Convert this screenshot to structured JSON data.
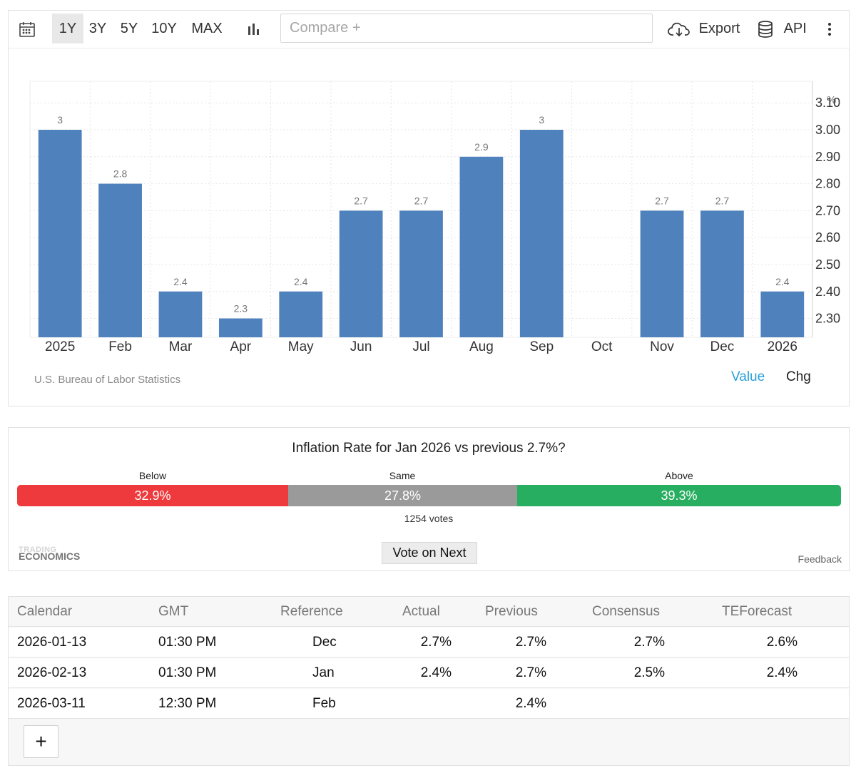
{
  "toolbar": {
    "ranges": [
      "1Y",
      "3Y",
      "5Y",
      "10Y",
      "MAX"
    ],
    "active_range": "1Y",
    "compare_placeholder": "Compare +",
    "export_label": "Export",
    "api_label": "API",
    "icons": {
      "calendar": "calendar-icon",
      "chart_type": "bar-chart-icon",
      "export": "cloud-download-icon",
      "api": "database-icon",
      "more": "more-vertical-icon"
    }
  },
  "chart_data": {
    "type": "bar",
    "categories": [
      "2025",
      "Feb",
      "Mar",
      "Apr",
      "May",
      "Jun",
      "Jul",
      "Aug",
      "Sep",
      "Oct",
      "Nov",
      "Dec",
      "2026"
    ],
    "values": [
      3,
      2.8,
      2.4,
      2.3,
      2.4,
      2.7,
      2.7,
      2.9,
      3,
      null,
      2.7,
      2.7,
      2.4
    ],
    "value_labels": [
      "3",
      "2.8",
      "2.4",
      "2.3",
      "2.4",
      "2.7",
      "2.7",
      "2.9",
      "3",
      "",
      "2.7",
      "2.7",
      "2.4"
    ],
    "y_ticks": [
      "2.30",
      "2.40",
      "2.50",
      "2.60",
      "2.70",
      "2.80",
      "2.90",
      "3.00",
      "3.10"
    ],
    "ylim": [
      2.23,
      3.18
    ],
    "unit": "%",
    "y_axis_side": "right",
    "grid": true,
    "bar_color": "#4f81bd",
    "source": "U.S. Bureau of Labor Statistics"
  },
  "chart_footer": {
    "value_toggle": "Value",
    "chg_toggle": "Chg",
    "active_color": "#2a9fd6"
  },
  "poll": {
    "question": "Inflation Rate for Jan 2026 vs previous 2.7%?",
    "options": [
      {
        "label": "Below",
        "percent": "32.9%",
        "share": 32.9,
        "color": "#ee3a3d"
      },
      {
        "label": "Same",
        "percent": "27.8%",
        "share": 27.8,
        "color": "#9a9a9a"
      },
      {
        "label": "Above",
        "percent": "39.3%",
        "share": 39.3,
        "color": "#27ae60"
      }
    ],
    "votes": "1254 votes",
    "vote_button": "Vote on Next",
    "logo_line1": "TRADING",
    "logo_line2": "ECONOMICS",
    "feedback": "Feedback"
  },
  "calendar": {
    "headers": {
      "calendar": "Calendar",
      "gmt": "GMT",
      "reference": "Reference",
      "actual": "Actual",
      "previous": "Previous",
      "consensus": "Consensus",
      "teforecast": "TEForecast"
    },
    "rows": [
      {
        "date": "2026-01-13",
        "time": "01:30 PM",
        "reference": "Dec",
        "actual": "2.7%",
        "previous": "2.7%",
        "consensus": "2.7%",
        "teforecast": "2.6%"
      },
      {
        "date": "2026-02-13",
        "time": "01:30 PM",
        "reference": "Jan",
        "actual": "2.4%",
        "previous": "2.7%",
        "consensus": "2.5%",
        "teforecast": "2.4%"
      },
      {
        "date": "2026-03-11",
        "time": "12:30 PM",
        "reference": "Feb",
        "actual": "",
        "previous": "2.4%",
        "consensus": "",
        "teforecast": ""
      }
    ],
    "add_button": "+"
  }
}
